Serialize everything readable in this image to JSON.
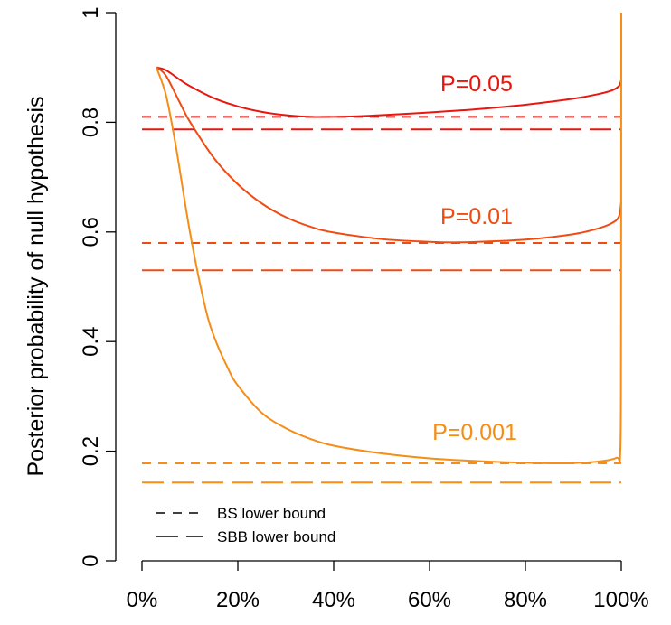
{
  "chart_data": {
    "type": "line",
    "title": "",
    "xlabel": "",
    "ylabel": "Posterior probability of null hypothesis",
    "xlim": [
      0,
      100
    ],
    "ylim": [
      0,
      1
    ],
    "x_ticks": [
      0,
      20,
      40,
      60,
      80,
      100
    ],
    "x_tick_labels": [
      "0%",
      "20%",
      "40%",
      "60%",
      "80%",
      "100%"
    ],
    "y_ticks": [
      0,
      0.2,
      0.4,
      0.6,
      0.8,
      1
    ],
    "y_tick_labels": [
      "0",
      "0.2",
      "0.4",
      "0.6",
      "0.8",
      "1"
    ],
    "grid": false,
    "legend_position": "bottom-left",
    "legend": [
      {
        "label": "BS lower bound",
        "dash": "short"
      },
      {
        "label": "SBB lower bound",
        "dash": "long"
      }
    ],
    "series": [
      {
        "name": "P=0.05",
        "color": "#e8160e",
        "x": [
          3,
          5,
          8,
          10,
          15,
          20,
          25,
          30,
          35,
          40,
          45,
          50,
          60,
          70,
          80,
          90,
          95,
          98,
          99.5,
          100
        ],
        "y": [
          0.9,
          0.895,
          0.877,
          0.866,
          0.844,
          0.829,
          0.819,
          0.813,
          0.81,
          0.81,
          0.811,
          0.813,
          0.818,
          0.824,
          0.832,
          0.843,
          0.851,
          0.858,
          0.866,
          0.877
        ],
        "bs_lower_bound": 0.81,
        "sbb_lower_bound": 0.787
      },
      {
        "name": "P=0.01",
        "color": "#f04b12",
        "x": [
          3,
          5,
          8,
          10,
          15,
          20,
          25,
          30,
          35,
          40,
          50,
          60,
          65,
          70,
          80,
          90,
          95,
          98,
          99.5,
          100
        ],
        "y": [
          0.9,
          0.885,
          0.834,
          0.801,
          0.735,
          0.687,
          0.652,
          0.627,
          0.61,
          0.599,
          0.587,
          0.582,
          0.581,
          0.582,
          0.586,
          0.596,
          0.606,
          0.616,
          0.628,
          0.655
        ],
        "bs_lower_bound": 0.58,
        "sbb_lower_bound": 0.53
      },
      {
        "name": "P=0.001",
        "color": "#f58d17",
        "x": [
          3,
          5,
          7,
          10,
          13,
          15,
          18,
          20,
          25,
          30,
          35,
          40,
          50,
          60,
          70,
          80,
          88,
          95,
          99,
          99.8,
          99.95,
          100
        ],
        "y": [
          0.9,
          0.85,
          0.76,
          0.6,
          0.47,
          0.41,
          0.35,
          0.32,
          0.27,
          0.242,
          0.223,
          0.21,
          0.196,
          0.187,
          0.182,
          0.179,
          0.178,
          0.181,
          0.188,
          0.2,
          0.4,
          1.0
        ],
        "bs_lower_bound": 0.178,
        "sbb_lower_bound": 0.143
      }
    ]
  }
}
